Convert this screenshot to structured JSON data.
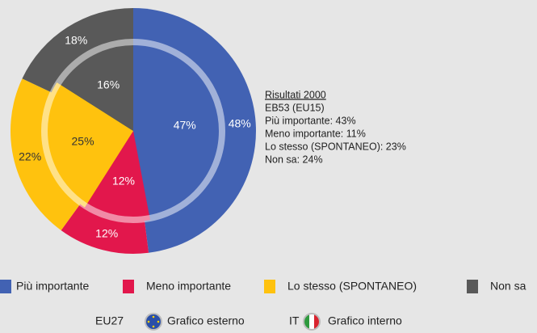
{
  "chart_data": {
    "type": "pie",
    "categories": [
      "Più importante",
      "Meno importante",
      "Lo stesso (SPONTANEO)",
      "Non sa"
    ],
    "colors": [
      "#4262b3",
      "#e2174c",
      "#ffc20e",
      "#595959"
    ],
    "series": [
      {
        "name": "EU27",
        "description": "Grafico esterno",
        "values": [
          48,
          12,
          22,
          18
        ],
        "value_labels": [
          "48%",
          "12%",
          "22%",
          "18%"
        ]
      },
      {
        "name": "IT",
        "description": "Grafico interno",
        "values": [
          47,
          12,
          25,
          16
        ],
        "value_labels": [
          "47%",
          "12%",
          "25%",
          "16%"
        ]
      }
    ],
    "annotation": {
      "title": "Risultati 2000",
      "lines": [
        "EB53 (EU15)",
        "Più importante: 43%",
        "Meno importante: 11%",
        "Lo stesso (SPONTANEO): 23%",
        "Non sa: 24%"
      ]
    }
  }
}
